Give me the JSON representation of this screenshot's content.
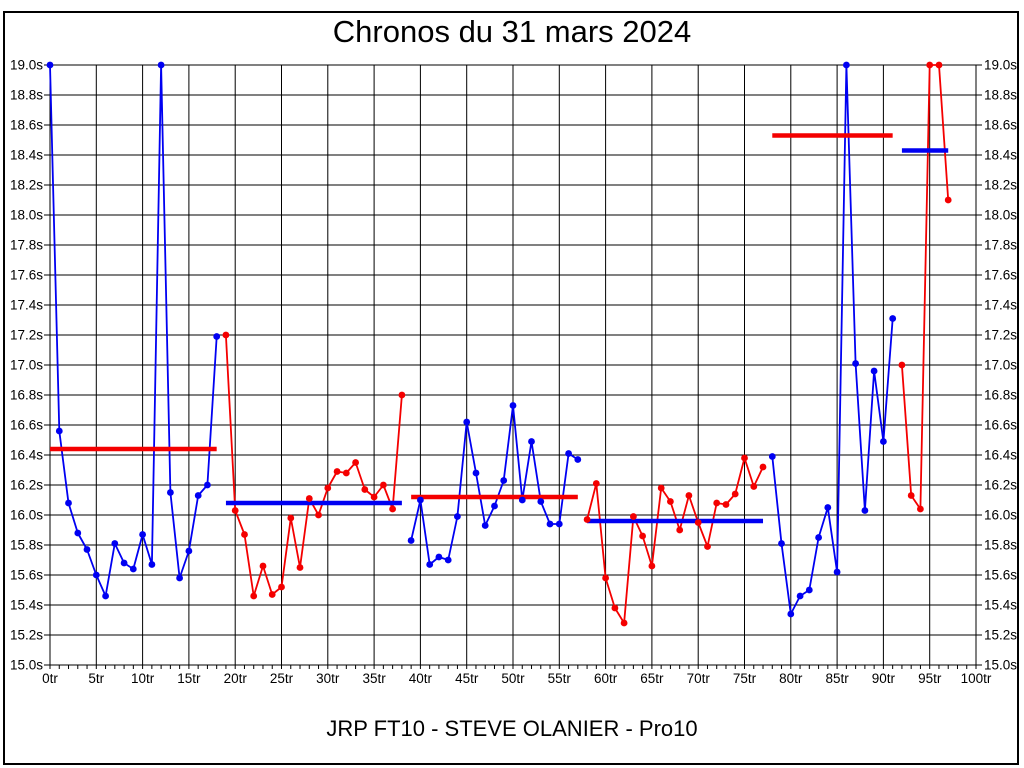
{
  "page": {
    "background": "#ffffff",
    "border_color": "#000000"
  },
  "chart_data": {
    "type": "line",
    "title": "Chronos du 31 mars 2024",
    "subtitle": "JRP FT10 - STEVE OLANIER - Pro10",
    "x_axis": {
      "min": 0,
      "max": 100,
      "major_tick_step": 5,
      "minor_tick_step": 1,
      "tick_suffix": "tr"
    },
    "y_axis": {
      "min": 15.0,
      "max": 19.0,
      "tick_step": 0.2,
      "tick_suffix": "s",
      "labels_on_both_sides": true
    },
    "grid": {
      "show": true,
      "color": "#000000"
    },
    "palette": {
      "blue": "#0000f2",
      "red": "#f40000"
    },
    "series": [
      {
        "name": "blue-segment-1",
        "color": "#0000f2",
        "x_start": 0,
        "values": [
          19.0,
          16.56,
          16.08,
          15.88,
          15.77,
          15.6,
          15.46,
          15.81,
          15.68,
          15.64,
          15.87,
          15.67,
          19.0,
          16.15,
          15.58,
          15.76,
          16.13,
          16.2,
          17.19
        ]
      },
      {
        "name": "red-segment-1",
        "color": "#f40000",
        "x_start": 19,
        "values": [
          17.2,
          16.03,
          15.87,
          15.46,
          15.66,
          15.47,
          15.52,
          15.98,
          15.65,
          16.11,
          16.0,
          16.18,
          16.29,
          16.28,
          16.35,
          16.17,
          16.12,
          16.2,
          16.04,
          16.8
        ]
      },
      {
        "name": "blue-segment-2",
        "color": "#0000f2",
        "x_start": 39,
        "values": [
          15.83,
          16.1,
          15.67,
          15.72,
          15.7,
          15.99,
          16.62,
          16.28,
          15.93,
          16.06,
          16.23,
          16.73,
          16.1,
          16.49,
          16.09,
          15.94,
          15.94,
          16.41,
          16.37
        ]
      },
      {
        "name": "red-segment-2",
        "color": "#f40000",
        "x_start": 58,
        "values": [
          15.97,
          16.21,
          15.58,
          15.38,
          15.28,
          15.99,
          15.86,
          15.66,
          16.18,
          16.09,
          15.9,
          16.13,
          15.95,
          15.79,
          16.08,
          16.07,
          16.14,
          16.38,
          16.19,
          16.32
        ]
      },
      {
        "name": "blue-segment-3",
        "color": "#0000f2",
        "x_start": 78,
        "values": [
          16.39,
          15.81,
          15.34,
          15.46,
          15.5,
          15.85,
          16.05,
          15.62,
          19.0,
          17.01,
          16.03,
          16.96,
          16.49,
          17.31
        ]
      },
      {
        "name": "red-segment-3",
        "color": "#f40000",
        "x_start": 92,
        "values": [
          17.0,
          16.13,
          16.04,
          19.0,
          19.0,
          18.1
        ]
      }
    ],
    "reference_lines": [
      {
        "name": "avg-line-1",
        "color": "#f40000",
        "y": 16.44,
        "x_start": 0,
        "x_end": 18
      },
      {
        "name": "avg-line-2",
        "color": "#0000f2",
        "y": 16.08,
        "x_start": 19,
        "x_end": 38
      },
      {
        "name": "avg-line-3",
        "color": "#f40000",
        "y": 16.12,
        "x_start": 39,
        "x_end": 57
      },
      {
        "name": "avg-line-4",
        "color": "#0000f2",
        "y": 15.96,
        "x_start": 58,
        "x_end": 77
      },
      {
        "name": "avg-line-5",
        "color": "#f40000",
        "y": 18.53,
        "x_start": 78,
        "x_end": 91
      },
      {
        "name": "avg-line-6",
        "color": "#0000f2",
        "y": 18.43,
        "x_start": 92,
        "x_end": 97
      }
    ]
  }
}
